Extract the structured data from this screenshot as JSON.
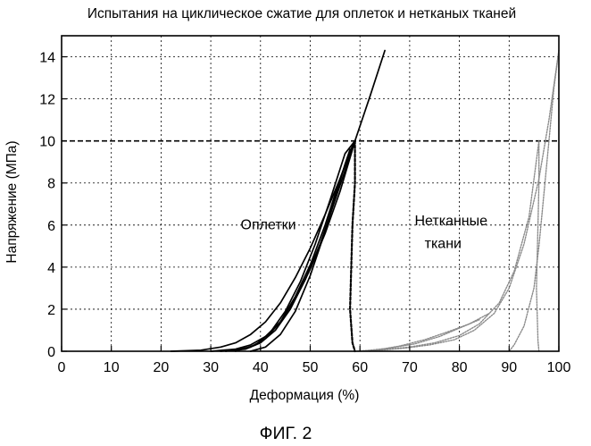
{
  "caption": "ФИГ. 2",
  "chart_data": {
    "type": "line",
    "title": "Испытания на циклическое сжатие для оплеток и нетканых тканей",
    "xlabel": "Деформация (%)",
    "ylabel": "Напряжение (МПа)",
    "xlim": [
      0,
      100
    ],
    "ylim": [
      0,
      15
    ],
    "xticks": [
      0,
      10,
      20,
      30,
      40,
      50,
      60,
      70,
      80,
      90,
      100
    ],
    "yticks": [
      0,
      2,
      4,
      6,
      8,
      10,
      12,
      14
    ],
    "grid": true,
    "reference_line_y": 10,
    "annotations": [
      {
        "text": "Оплетки",
        "x": 36,
        "y": 5.8
      },
      {
        "text": "Нетканные",
        "x": 71,
        "y": 6.0
      },
      {
        "text": "ткани",
        "x": 73,
        "y": 4.9
      }
    ],
    "series": [
      {
        "group": "braids",
        "x": [
          22,
          28,
          32,
          35,
          38,
          41,
          44,
          47,
          50,
          53,
          56,
          59,
          62,
          65
        ],
        "y": [
          0.0,
          0.05,
          0.2,
          0.4,
          0.8,
          1.4,
          2.3,
          3.5,
          4.9,
          6.5,
          8.2,
          10.0,
          12.1,
          14.3
        ]
      },
      {
        "group": "braids",
        "x": [
          30,
          35,
          38,
          41,
          44,
          47,
          50,
          53,
          56,
          58,
          59
        ],
        "y": [
          0.0,
          0.1,
          0.3,
          0.7,
          1.4,
          2.5,
          3.9,
          5.6,
          7.6,
          9.2,
          10.0
        ]
      },
      {
        "group": "braids",
        "x": [
          32,
          37,
          40,
          43,
          46,
          49,
          52,
          55,
          58,
          59
        ],
        "y": [
          0.0,
          0.1,
          0.4,
          1.0,
          2.0,
          3.4,
          5.1,
          7.2,
          9.3,
          10.0
        ]
      },
      {
        "group": "braids",
        "x": [
          33,
          38,
          41,
          44,
          47,
          50,
          53,
          56,
          58,
          59
        ],
        "y": [
          0.0,
          0.2,
          0.6,
          1.4,
          2.6,
          4.1,
          6.0,
          8.2,
          9.5,
          10.0
        ]
      },
      {
        "group": "braids",
        "x": [
          35,
          39,
          42,
          45,
          48,
          51,
          54,
          57,
          59
        ],
        "y": [
          0.0,
          0.3,
          0.9,
          1.9,
          3.3,
          5.1,
          7.2,
          9.4,
          10.0
        ]
      },
      {
        "group": "braids",
        "x": [
          38,
          41,
          44,
          47,
          50,
          53,
          55,
          57,
          58
        ],
        "y": [
          0.0,
          0.2,
          0.8,
          1.9,
          3.6,
          5.7,
          7.3,
          8.9,
          9.6
        ]
      },
      {
        "group": "braids",
        "x": [
          59,
          59,
          58.5,
          58,
          58.5,
          59
        ],
        "y": [
          10.0,
          8.0,
          6.0,
          2.0,
          0.4,
          0.0
        ]
      },
      {
        "group": "nonwovens",
        "x": [
          59,
          64,
          69,
          74,
          79,
          83,
          87,
          90,
          93,
          96,
          98,
          100
        ],
        "y": [
          0.0,
          0.05,
          0.15,
          0.3,
          0.55,
          1.0,
          1.8,
          3.0,
          5.1,
          8.2,
          11.0,
          14.3
        ]
      },
      {
        "group": "nonwovens",
        "x": [
          59,
          65,
          70,
          75,
          80,
          84,
          88,
          91,
          94,
          96
        ],
        "y": [
          0.0,
          0.08,
          0.2,
          0.4,
          0.75,
          1.3,
          2.3,
          3.8,
          6.4,
          10.0
        ]
      },
      {
        "group": "nonwovens",
        "x": [
          60,
          66,
          71,
          76,
          80,
          84
        ],
        "y": [
          0.0,
          0.15,
          0.35,
          0.7,
          1.1,
          1.5
        ]
      },
      {
        "group": "nonwovens",
        "x": [
          62,
          68,
          73,
          78,
          82,
          86
        ],
        "y": [
          0.0,
          0.25,
          0.55,
          0.95,
          1.3,
          1.8
        ]
      },
      {
        "group": "nonwovens",
        "x": [
          100,
          99,
          98,
          97,
          96,
          95,
          93,
          91,
          90
        ],
        "y": [
          14.3,
          12.5,
          10.0,
          7.5,
          5.0,
          3.0,
          1.2,
          0.3,
          0.0
        ]
      },
      {
        "group": "nonwovens",
        "x": [
          96,
          96,
          95.8,
          95.5,
          95.8,
          96
        ],
        "y": [
          10.0,
          8.0,
          6.0,
          3.0,
          0.5,
          0.0
        ]
      }
    ]
  }
}
